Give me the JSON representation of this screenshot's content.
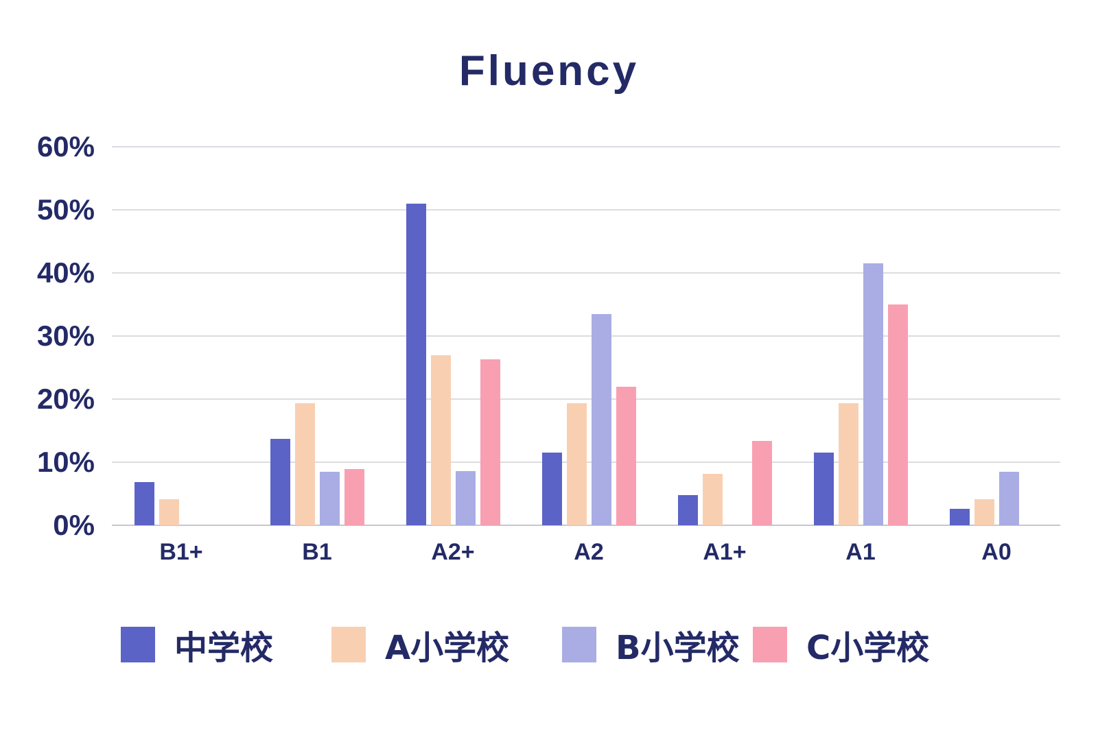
{
  "chart_data": {
    "type": "bar",
    "title": "Fluency",
    "categories": [
      "B1+",
      "B1",
      "A2+",
      "A2",
      "A1+",
      "A1",
      "A0"
    ],
    "series": [
      {
        "name": "中学校",
        "color": "#5b63c7",
        "values": [
          6.8,
          13.7,
          51.0,
          11.5,
          4.8,
          11.5,
          2.6
        ]
      },
      {
        "name": "A小学校",
        "color": "#f9cfb2",
        "values": [
          4.1,
          19.4,
          27.0,
          19.4,
          8.1,
          19.4,
          4.1
        ]
      },
      {
        "name": "B小学校",
        "color": "#a9ade4",
        "values": [
          0,
          8.5,
          8.6,
          33.5,
          0,
          41.5,
          8.5
        ]
      },
      {
        "name": "C小学校",
        "color": "#f99fb2",
        "values": [
          0,
          8.9,
          26.3,
          22.0,
          13.4,
          35.0,
          0
        ]
      }
    ],
    "y_ticks": [
      {
        "value": 60,
        "label": "60%"
      },
      {
        "value": 50,
        "label": "50%"
      },
      {
        "value": 40,
        "label": "40%"
      },
      {
        "value": 30,
        "label": "30%"
      },
      {
        "value": 20,
        "label": "20%"
      },
      {
        "value": 10,
        "label": "10%"
      },
      {
        "value": 0,
        "label": "0%"
      }
    ],
    "ylim": [
      0,
      60
    ],
    "grid": true,
    "legend_position": "bottom",
    "colors": {
      "text": "#232a66",
      "gridline": "#dcdce2",
      "axis_line": "#c6c6ce",
      "background": "#ffffff"
    }
  }
}
